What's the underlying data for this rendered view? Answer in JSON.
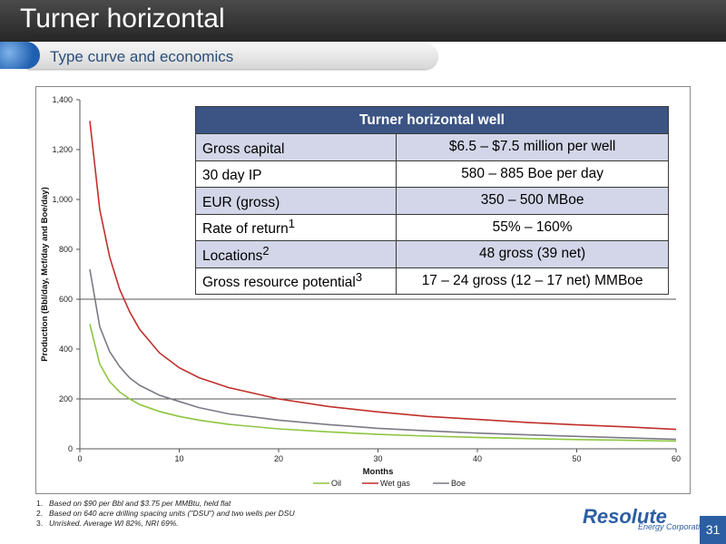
{
  "slide": {
    "title": "Turner horizontal",
    "subtitle": "Type curve and economics",
    "page_number": "31"
  },
  "colors": {
    "oil": "#8dc63f",
    "wet_gas": "#c0302b",
    "boe": "#7a7a86",
    "table_header": "#3b5483",
    "table_shade": "#d2d6e8",
    "accent": "#2b5ea3"
  },
  "chart_data": {
    "type": "line",
    "xlabel": "Months",
    "ylabel": "Production (Bbl/day, Mcf/day and Boe/day)",
    "xlim": [
      0,
      60
    ],
    "ylim": [
      0,
      1400
    ],
    "x_ticks": [
      "0",
      "10",
      "20",
      "30",
      "40",
      "50",
      "60"
    ],
    "y_ticks": [
      "0",
      "200",
      "400",
      "600",
      "800",
      "1,000",
      "1,200",
      "1,400"
    ],
    "gridlines_y": [
      200,
      600
    ],
    "legend_position": "bottom",
    "x": [
      1,
      2,
      3,
      4,
      5,
      6,
      8,
      10,
      12,
      15,
      20,
      25,
      30,
      35,
      40,
      45,
      50,
      55,
      60
    ],
    "series": [
      {
        "name": "Oil",
        "values": [
          500,
          340,
          270,
          228,
          200,
          178,
          150,
          130,
          115,
          98,
          80,
          68,
          58,
          51,
          46,
          41,
          37,
          34,
          31
        ]
      },
      {
        "name": "Wet gas",
        "values": [
          1315,
          960,
          770,
          640,
          550,
          480,
          385,
          325,
          285,
          245,
          200,
          170,
          148,
          130,
          118,
          106,
          96,
          88,
          78
        ]
      },
      {
        "name": "Boe",
        "values": [
          720,
          490,
          390,
          330,
          285,
          255,
          215,
          190,
          165,
          140,
          115,
          97,
          82,
          72,
          63,
          56,
          50,
          44,
          38
        ]
      }
    ]
  },
  "table": {
    "header": "Turner horizontal well",
    "rows": [
      {
        "label": "Gross capital",
        "sup": "",
        "value": "$6.5 – $7.5 million per well"
      },
      {
        "label": "30 day IP",
        "sup": "",
        "value": "580 – 885 Boe per day"
      },
      {
        "label": "EUR (gross)",
        "sup": "",
        "value": "350 – 500 MBoe"
      },
      {
        "label": "Rate of return",
        "sup": "1",
        "value": "55% – 160%"
      },
      {
        "label": "Locations",
        "sup": "2",
        "value": "48 gross (39 net)"
      },
      {
        "label": "Gross resource potential",
        "sup": "3",
        "value": "17 – 24 gross (12 – 17 net) MMBoe"
      }
    ]
  },
  "footnotes": [
    {
      "num": "1.",
      "text": "Based on $90 per Bbl and $3.75 per MMBtu, held flat"
    },
    {
      "num": "2.",
      "text": "Based on 640 acre drilling spacing units (\"DSU\") and two wells per DSU"
    },
    {
      "num": "3.",
      "text": "Unrisked. Average WI 82%, NRI 69%."
    }
  ],
  "logo": {
    "name": "Resolute",
    "sub": "Energy Corporation"
  }
}
